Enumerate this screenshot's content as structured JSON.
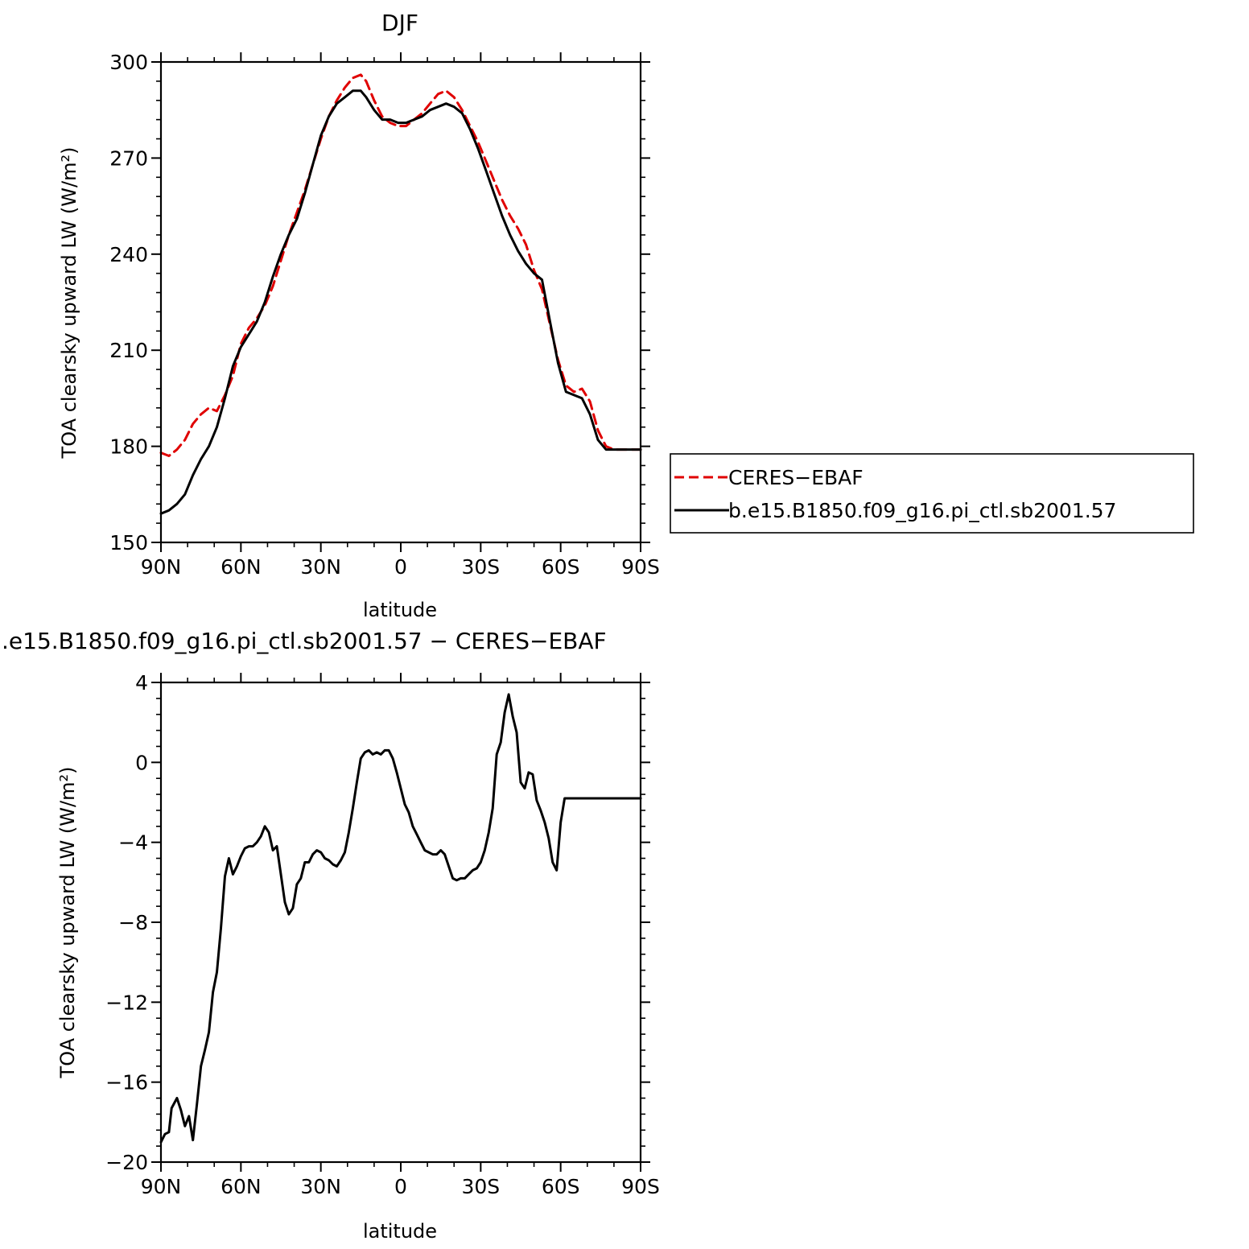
{
  "chart_data": [
    {
      "type": "line",
      "title": "DJF",
      "xlabel": "latitude",
      "ylabel": "TOA clearsky upward LW (W/m²)",
      "xlim": [
        90,
        -90
      ],
      "ylim": [
        150,
        300
      ],
      "xticks": [
        90,
        60,
        30,
        0,
        -30,
        -60,
        -90
      ],
      "xtick_labels": [
        "90N",
        "60N",
        "30N",
        "0",
        "30S",
        "60S",
        "90S"
      ],
      "yticks": [
        150,
        180,
        210,
        240,
        270,
        300
      ],
      "ytick_labels": [
        "150",
        "180",
        "210",
        "240",
        "270",
        "300"
      ],
      "grid": false,
      "legend": "right",
      "series": [
        {
          "name": "CERES−EBAF",
          "color": "#e00000",
          "dash": "dashed",
          "x": [
            90,
            87,
            84,
            81,
            78,
            75,
            72,
            69,
            66,
            63,
            60,
            57,
            54,
            51,
            48,
            45,
            42,
            39,
            36,
            33,
            30,
            27,
            24,
            21,
            18,
            15,
            13,
            10,
            7,
            4,
            1,
            -2,
            -5,
            -8,
            -11,
            -14,
            -17,
            -20,
            -23,
            -26,
            -29,
            -32,
            -35,
            -38,
            -41,
            -44,
            -47,
            -50,
            -53,
            -56,
            -59,
            -62,
            -65,
            -68,
            -71,
            -74,
            -77,
            -80,
            -83,
            -86,
            -88,
            -90
          ],
          "y": [
            178,
            177,
            179,
            182,
            187,
            190,
            192,
            191,
            196,
            202,
            212,
            217,
            220,
            224,
            230,
            238,
            246,
            253,
            260,
            268,
            276,
            283,
            288,
            292,
            295,
            296,
            294,
            288,
            283,
            281,
            280,
            280,
            282,
            284,
            287,
            290,
            291,
            289,
            285,
            280,
            275,
            269,
            263,
            257,
            252,
            248,
            243,
            235,
            229,
            218,
            207,
            199,
            197,
            198,
            194,
            185,
            180,
            179,
            179,
            179,
            179,
            179
          ]
        },
        {
          "name": "b.e15.B1850.f09_g16.pi_ctl.sb2001.57",
          "color": "#000000",
          "dash": "solid",
          "x": [
            90,
            87,
            84,
            81,
            78,
            75,
            72,
            69,
            66,
            63,
            60,
            57,
            54,
            51,
            48,
            45,
            42,
            39,
            36,
            33,
            30,
            27,
            24,
            21,
            18,
            15,
            13,
            10,
            7,
            4,
            1,
            -2,
            -5,
            -8,
            -11,
            -14,
            -17,
            -20,
            -23,
            -26,
            -29,
            -32,
            -35,
            -38,
            -41,
            -44,
            -47,
            -50,
            -53,
            -56,
            -59,
            -62,
            -65,
            -68,
            -71,
            -74,
            -77,
            -80,
            -83,
            -86,
            -88,
            -90
          ],
          "y": [
            159,
            160,
            162,
            165,
            171,
            176,
            180,
            186,
            195,
            205,
            211,
            215,
            219,
            225,
            233,
            240,
            246,
            251,
            259,
            268,
            277,
            283,
            287,
            289,
            291,
            291,
            289,
            285,
            282,
            282,
            281,
            281,
            282,
            283,
            285,
            286,
            287,
            286,
            284,
            279,
            273,
            266,
            259,
            252,
            246,
            241,
            237,
            234,
            232,
            219,
            206,
            197,
            196,
            195,
            190,
            182,
            179,
            179,
            179,
            179,
            179,
            179
          ]
        }
      ]
    },
    {
      "type": "line",
      "title": ".e15.B1850.f09_g16.pi_ctl.sb2001.57 − CERES−EBAF",
      "xlabel": "latitude",
      "ylabel": "TOA clearsky upward LW (W/m²)",
      "xlim": [
        90,
        -90
      ],
      "ylim": [
        -20,
        4
      ],
      "xticks": [
        90,
        60,
        30,
        0,
        -30,
        -60,
        -90
      ],
      "xtick_labels": [
        "90N",
        "60N",
        "30N",
        "0",
        "30S",
        "60S",
        "90S"
      ],
      "yticks": [
        -20,
        -16,
        -12,
        -8,
        -4,
        0,
        4
      ],
      "ytick_labels": [
        "−20",
        "−16",
        "−12",
        "−8",
        "−4",
        "0",
        "4"
      ],
      "grid": false,
      "series": [
        {
          "color": "#000000",
          "dash": "solid",
          "x": [
            90,
            88.5,
            87,
            86,
            84,
            82.5,
            81,
            79.5,
            78,
            76.5,
            75,
            73.5,
            72,
            70.5,
            69,
            67.5,
            66,
            64.5,
            63,
            61.5,
            60,
            58.5,
            57,
            55.5,
            54,
            52.5,
            51,
            49.5,
            48,
            46.5,
            45,
            43.5,
            42,
            40.5,
            39,
            37.5,
            36,
            34.5,
            33,
            31.5,
            30,
            28.5,
            27,
            25.5,
            24,
            22.5,
            21,
            19.5,
            18,
            16.5,
            15,
            13.5,
            12,
            10.5,
            9,
            7.5,
            6,
            4.5,
            3,
            1.5,
            0,
            -1.5,
            -3,
            -4.5,
            -6,
            -7.5,
            -9,
            -10.5,
            -12,
            -13.5,
            -15,
            -16.5,
            -18,
            -19.5,
            -21,
            -22.5,
            -24,
            -25.5,
            -27,
            -28.5,
            -30,
            -31.5,
            -33,
            -34.5,
            -36,
            -37.5,
            -39,
            -40.5,
            -42,
            -43.5,
            -45,
            -46.5,
            -48,
            -49.5,
            -51,
            -52.5,
            -54,
            -55.5,
            -57,
            -58.5,
            -60,
            -61.5,
            -63,
            -64.5,
            -66,
            -67.5,
            -69,
            -70.5,
            -72,
            -73.5,
            -75,
            -76.5,
            -78,
            -79.5,
            -81,
            -82.5,
            -84,
            -85.5,
            -87,
            -88.5,
            -90
          ],
          "y": [
            -19.0,
            -18.6,
            -18.5,
            -17.3,
            -16.8,
            -17.4,
            -18.2,
            -17.7,
            -18.9,
            -17.1,
            -15.2,
            -14.4,
            -13.5,
            -11.5,
            -10.5,
            -8.3,
            -5.7,
            -4.8,
            -5.6,
            -5.2,
            -4.7,
            -4.3,
            -4.2,
            -4.2,
            -4.0,
            -3.7,
            -3.2,
            -3.5,
            -4.4,
            -4.2,
            -5.6,
            -7.0,
            -7.6,
            -7.3,
            -6.1,
            -5.8,
            -5.0,
            -5.0,
            -4.6,
            -4.4,
            -4.5,
            -4.8,
            -4.9,
            -5.1,
            -5.2,
            -4.9,
            -4.5,
            -3.5,
            -2.3,
            -1.0,
            0.2,
            0.5,
            0.6,
            0.4,
            0.5,
            0.4,
            0.6,
            0.6,
            0.2,
            -0.5,
            -1.3,
            -2.1,
            -2.5,
            -3.2,
            -3.6,
            -4.0,
            -4.4,
            -4.5,
            -4.6,
            -4.6,
            -4.4,
            -4.6,
            -5.2,
            -5.8,
            -5.9,
            -5.8,
            -5.8,
            -5.6,
            -5.4,
            -5.3,
            -5.0,
            -4.4,
            -3.5,
            -2.3,
            0.4,
            1.0,
            2.5,
            3.4,
            2.3,
            1.5,
            -1.0,
            -1.3,
            -0.5,
            -0.6,
            -1.9,
            -2.4,
            -3.0,
            -3.8,
            -5.0,
            -5.4,
            -3.0,
            -1.8,
            -1.8,
            -1.8,
            -1.8,
            -1.8,
            -1.8,
            -1.8,
            -1.8,
            -1.8,
            -1.8,
            -1.8,
            -1.8,
            -1.8,
            -1.8,
            -1.8,
            -1.8,
            -1.8,
            -1.8,
            -1.8,
            -1.8
          ]
        }
      ]
    }
  ]
}
